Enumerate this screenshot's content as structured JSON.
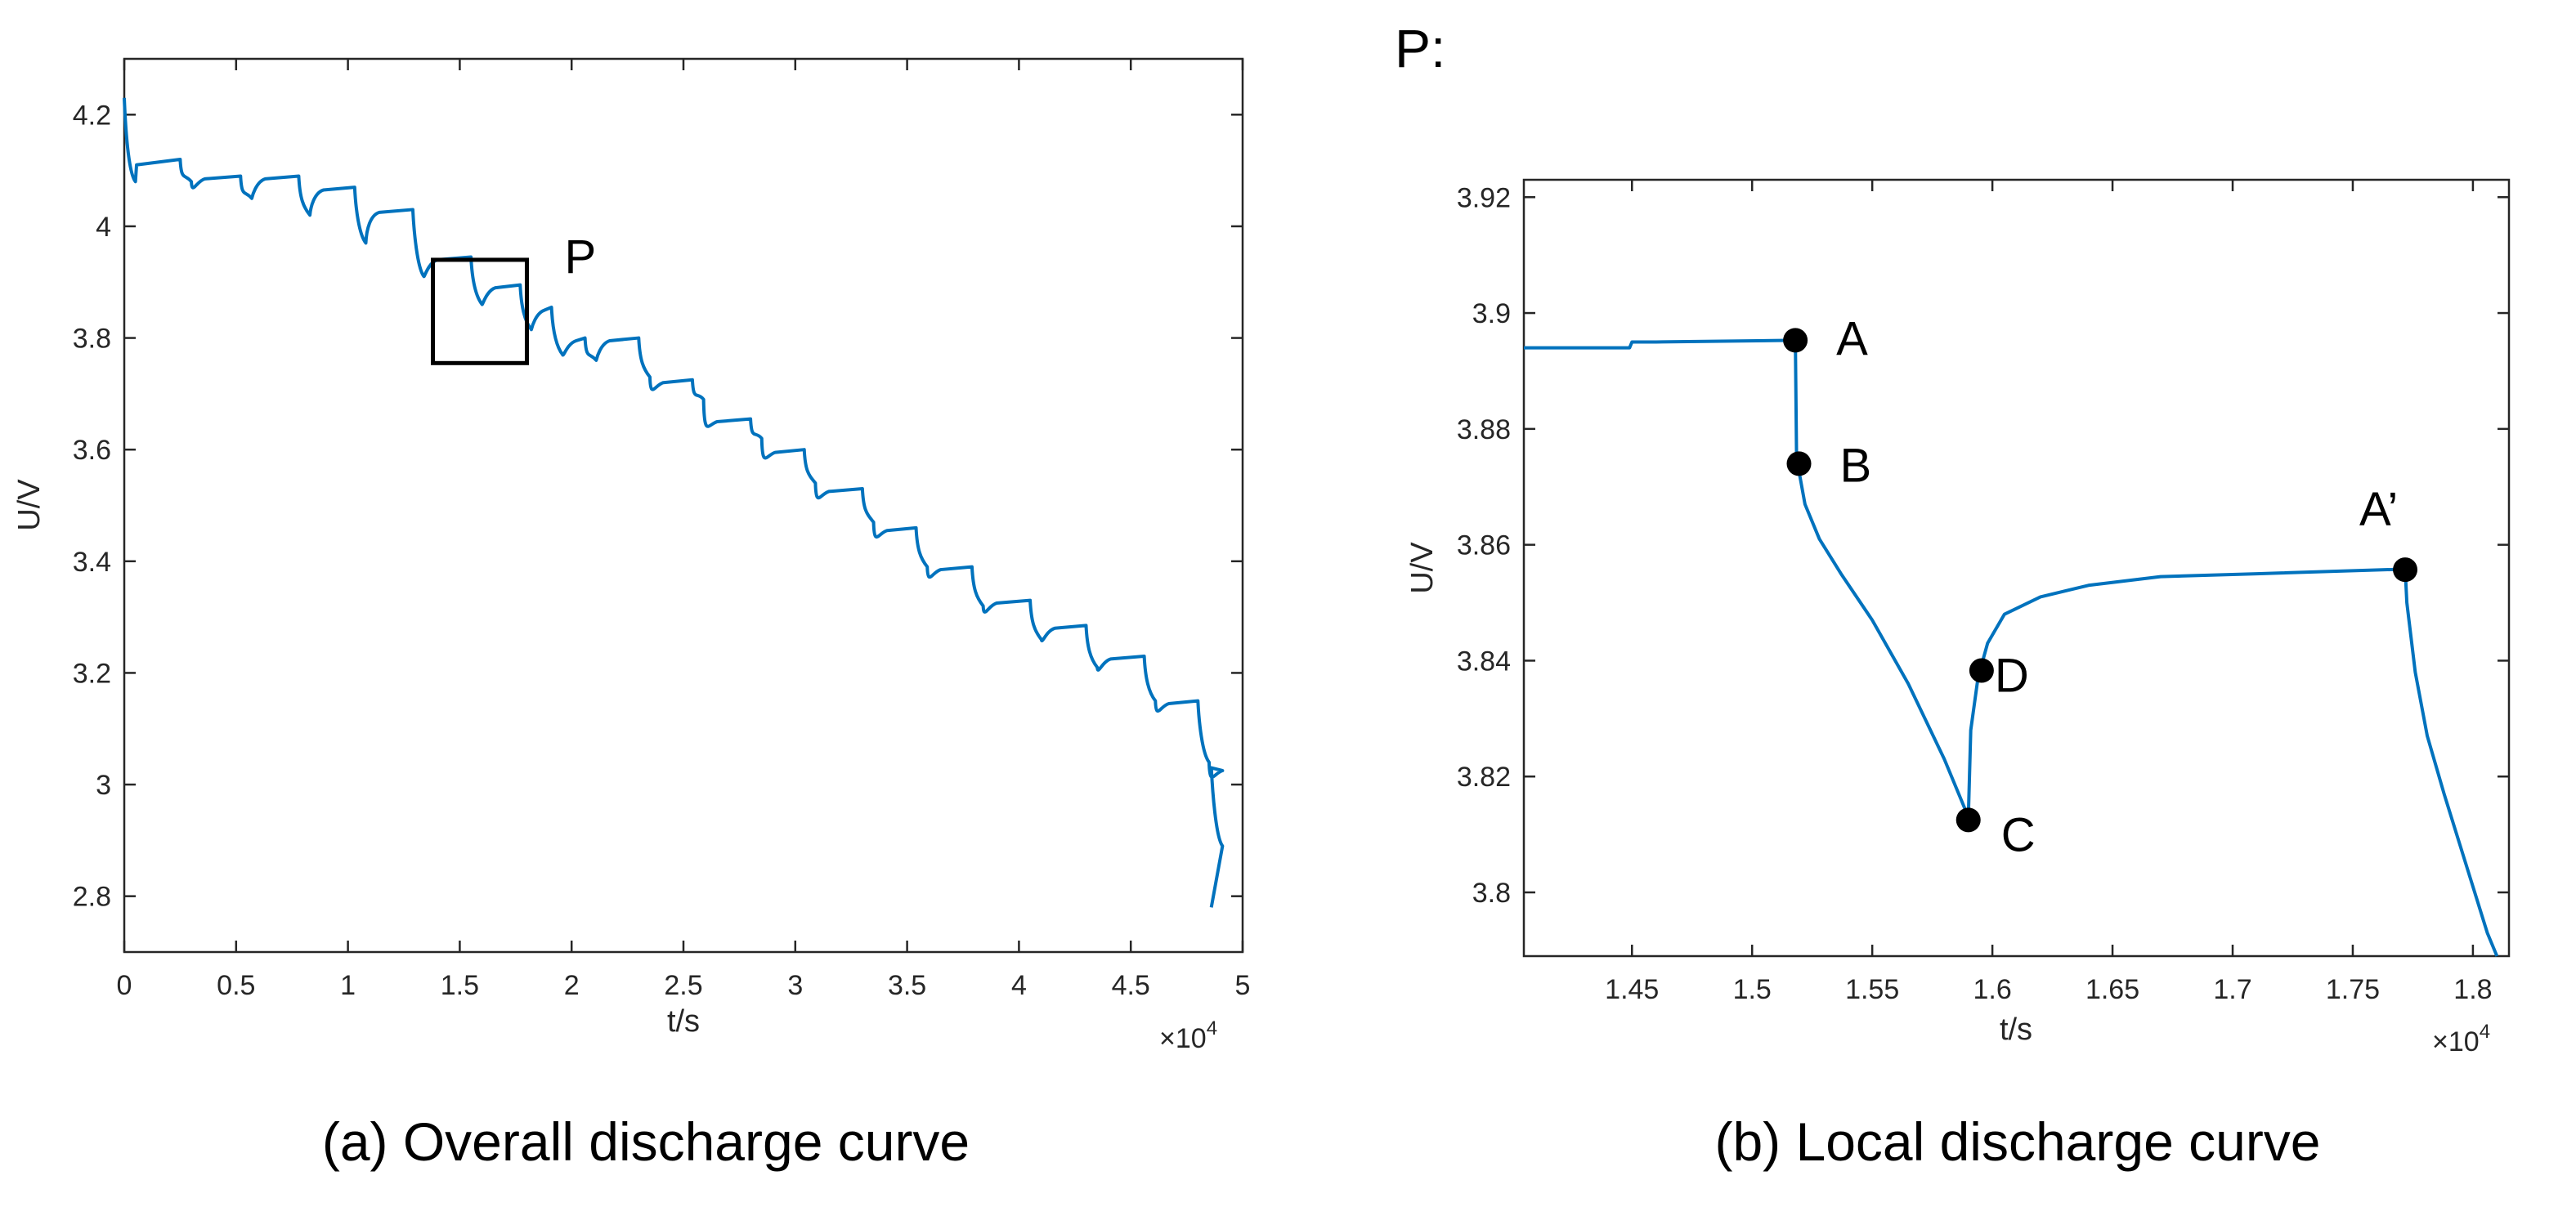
{
  "captions": {
    "left": "(a)  Overall discharge curve",
    "right": "(b)  Local discharge curve"
  },
  "colors": {
    "line": "#0072bd",
    "axes": "#262626",
    "box": "#000000",
    "marker": "#000000"
  },
  "chart_data": [
    {
      "id": "overall",
      "type": "line",
      "title": "",
      "xlabel": "t/s",
      "ylabel": "U/V",
      "x_multiplier_label": "×10",
      "x_multiplier_exp": "4",
      "xlim": [
        0,
        5
      ],
      "ylim": [
        2.7,
        4.3
      ],
      "xticks": [
        0,
        0.5,
        1,
        1.5,
        2,
        2.5,
        3,
        3.5,
        4,
        4.5,
        5
      ],
      "xtick_labels": [
        "0",
        "0.5",
        "1",
        "1.5",
        "2",
        "2.5",
        "3",
        "3.5",
        "4",
        "4.5",
        "5"
      ],
      "yticks": [
        2.8,
        3.0,
        3.2,
        3.4,
        3.6,
        3.8,
        4.0,
        4.2
      ],
      "ytick_labels": [
        "2.8",
        "3",
        "3.2",
        "3.4",
        "3.6",
        "3.8",
        "4",
        "4.2"
      ],
      "start_point": [
        0,
        4.23
      ],
      "pulses": [
        [
          0.08,
          4.12,
          0.25,
          4.08
        ],
        [
          0.34,
          4.09,
          0.52,
          4.05
        ],
        [
          0.59,
          4.09,
          0.78,
          4.02
        ],
        [
          0.84,
          4.07,
          1.03,
          3.97
        ],
        [
          1.11,
          4.03,
          1.29,
          3.91
        ],
        [
          1.38,
          3.945,
          1.55,
          3.86
        ],
        [
          1.64,
          3.895,
          1.77,
          3.815
        ],
        [
          1.8,
          3.855,
          1.91,
          3.77
        ],
        [
          1.94,
          3.8,
          2.06,
          3.76
        ],
        [
          2.11,
          3.8,
          2.3,
          3.73
        ],
        [
          2.34,
          3.725,
          2.54,
          3.69
        ],
        [
          2.6,
          3.655,
          2.8,
          3.62
        ],
        [
          2.85,
          3.6,
          3.04,
          3.54
        ],
        [
          3.09,
          3.53,
          3.3,
          3.47
        ],
        [
          3.34,
          3.46,
          3.54,
          3.39
        ],
        [
          3.59,
          3.39,
          3.79,
          3.32
        ],
        [
          3.84,
          3.33,
          4.05,
          3.26
        ],
        [
          4.09,
          3.285,
          4.3,
          3.21
        ],
        [
          4.34,
          3.23,
          4.56,
          3.15
        ],
        [
          4.61,
          3.15,
          4.8,
          3.04
        ],
        [
          4.82,
          3.03,
          4.86,
          2.89
        ]
      ],
      "end_point": [
        4.86,
        2.78
      ],
      "inset_box": {
        "label": "P",
        "x_range": [
          1.38,
          1.8
        ],
        "y_range": [
          3.755,
          3.94
        ]
      }
    },
    {
      "id": "local",
      "type": "line",
      "title": "P:",
      "xlabel": "t/s",
      "ylabel": "U/V",
      "x_multiplier_label": "×10",
      "x_multiplier_exp": "4",
      "xlim": [
        1.405,
        1.815
      ],
      "ylim": [
        3.789,
        3.923
      ],
      "xticks": [
        1.45,
        1.5,
        1.55,
        1.6,
        1.65,
        1.7,
        1.75,
        1.8
      ],
      "xtick_labels": [
        "1.45",
        "1.5",
        "1.55",
        "1.6",
        "1.65",
        "1.7",
        "1.75",
        "1.8"
      ],
      "yticks": [
        3.8,
        3.82,
        3.84,
        3.86,
        3.88,
        3.9,
        3.92
      ],
      "ytick_labels": [
        "3.8",
        "3.82",
        "3.84",
        "3.86",
        "3.88",
        "3.9",
        "3.92"
      ],
      "curve": [
        [
          1.405,
          3.894
        ],
        [
          1.449,
          3.894
        ],
        [
          1.45,
          3.895
        ],
        [
          1.46,
          3.895
        ],
        [
          1.518,
          3.8953
        ],
        [
          1.5185,
          3.875
        ],
        [
          1.522,
          3.867
        ],
        [
          1.528,
          3.861
        ],
        [
          1.537,
          3.855
        ],
        [
          1.55,
          3.847
        ],
        [
          1.565,
          3.836
        ],
        [
          1.58,
          3.823
        ],
        [
          1.59,
          3.813
        ],
        [
          1.591,
          3.828
        ],
        [
          1.594,
          3.837
        ],
        [
          1.598,
          3.843
        ],
        [
          1.605,
          3.848
        ],
        [
          1.62,
          3.851
        ],
        [
          1.64,
          3.853
        ],
        [
          1.67,
          3.8545
        ],
        [
          1.71,
          3.855
        ],
        [
          1.7718,
          3.8558
        ],
        [
          1.7725,
          3.85
        ],
        [
          1.776,
          3.838
        ],
        [
          1.781,
          3.827
        ],
        [
          1.788,
          3.817
        ],
        [
          1.797,
          3.805
        ],
        [
          1.806,
          3.793
        ],
        [
          1.81,
          3.789
        ]
      ],
      "points": [
        {
          "label": "A",
          "x": 1.518,
          "y": 3.8953
        },
        {
          "label": "B",
          "x": 1.5195,
          "y": 3.874
        },
        {
          "label": "C",
          "x": 1.59,
          "y": 3.8125
        },
        {
          "label": "D",
          "x": 1.5955,
          "y": 3.8383
        },
        {
          "label": "A’",
          "x": 1.7718,
          "y": 3.8557
        }
      ]
    }
  ]
}
